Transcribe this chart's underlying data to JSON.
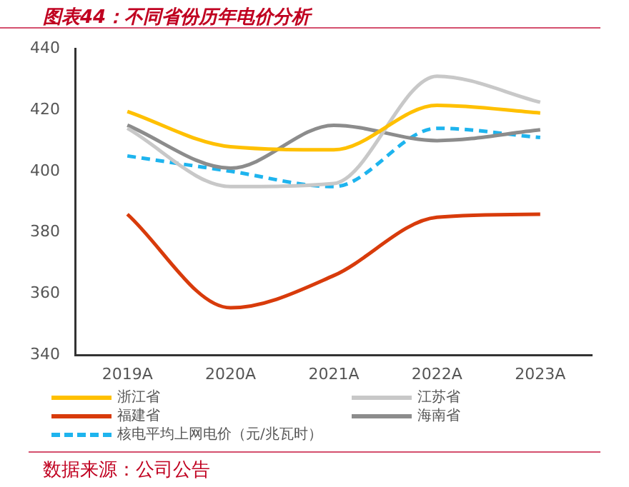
{
  "chart_data": {
    "type": "line",
    "title": "图表44：不同省份历年电价分析",
    "categories": [
      "2019A",
      "2020A",
      "2021A",
      "2022A",
      "2023A"
    ],
    "series": [
      {
        "name": "浙江省",
        "color": "#ffc000",
        "values": [
          419.5,
          408,
          407,
          421.5,
          419
        ]
      },
      {
        "name": "江苏省",
        "color": "#c8c8c8",
        "values": [
          414,
          395,
          396,
          431,
          422.5
        ]
      },
      {
        "name": "福建省",
        "color": "#d83b0b",
        "values": [
          386,
          355.5,
          366,
          385,
          386
        ]
      },
      {
        "name": "海南省",
        "color": "#8c8c8c",
        "values": [
          415,
          401,
          415,
          410,
          413.5
        ]
      },
      {
        "name": "核电平均上网电价（元/兆瓦时）",
        "color": "#1eb4ee",
        "values": [
          405,
          400,
          395,
          414,
          411
        ],
        "line_style": "dashed"
      }
    ],
    "ylim": [
      340,
      440
    ],
    "yticks": [
      340,
      360,
      380,
      400,
      420,
      440
    ],
    "grid": false,
    "legend": "bottom",
    "marker": "none",
    "annotations": [
      "数据来源：公司公告"
    ]
  }
}
